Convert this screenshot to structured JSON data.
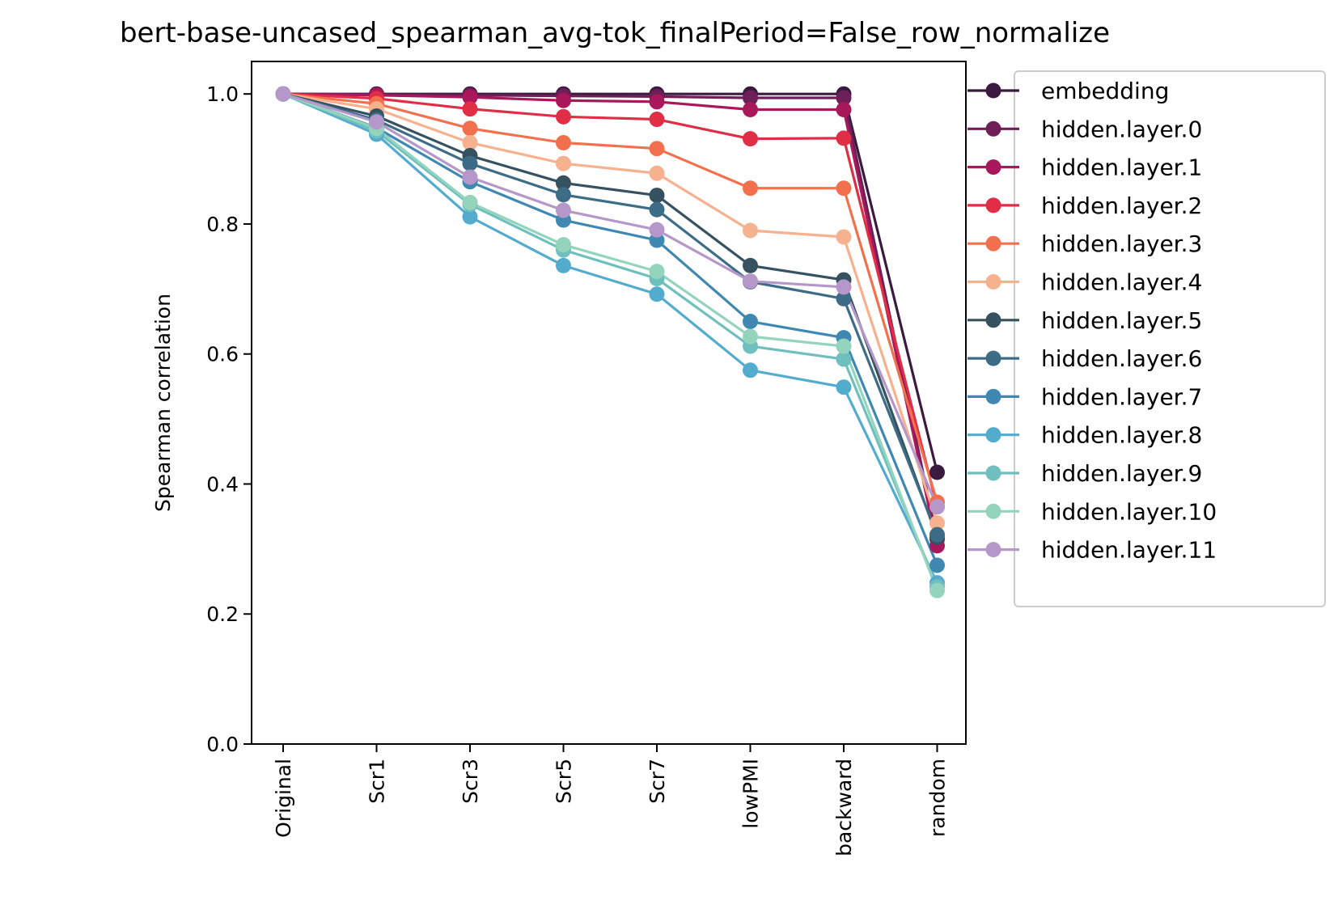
{
  "chart_data": {
    "type": "line",
    "title": "bert-base-uncased_spearman_avg-tok_finalPeriod=False_row_normalize",
    "xlabel": "",
    "ylabel": "Spearman correlation",
    "categories": [
      "Original",
      "Scr1",
      "Scr3",
      "Scr5",
      "Scr7",
      "lowPMI",
      "backward",
      "random"
    ],
    "ylim": [
      0.0,
      1.05
    ],
    "yticks": [
      0.0,
      0.2,
      0.4,
      0.6,
      0.8,
      1.0
    ],
    "ytick_labels": [
      "0.0",
      "0.2",
      "0.4",
      "0.6",
      "0.8",
      "1.0"
    ],
    "grid": false,
    "legend_position": "outside-right",
    "series": [
      {
        "name": "embedding",
        "color": "#3b1a40",
        "values": [
          1.0,
          1.0,
          1.0,
          1.0,
          1.0,
          1.0,
          1.0,
          0.418
        ]
      },
      {
        "name": "hidden.layer.0",
        "color": "#6e1f57",
        "values": [
          1.0,
          0.999,
          0.998,
          0.997,
          0.996,
          0.994,
          0.994,
          0.315
        ]
      },
      {
        "name": "hidden.layer.1",
        "color": "#a8185b",
        "values": [
          1.0,
          0.998,
          0.995,
          0.99,
          0.988,
          0.976,
          0.976,
          0.305
        ]
      },
      {
        "name": "hidden.layer.2",
        "color": "#df2e46",
        "values": [
          1.0,
          0.993,
          0.977,
          0.965,
          0.961,
          0.931,
          0.932,
          0.365
        ]
      },
      {
        "name": "hidden.layer.3",
        "color": "#f3704f",
        "values": [
          1.0,
          0.985,
          0.947,
          0.925,
          0.916,
          0.855,
          0.855,
          0.372
        ]
      },
      {
        "name": "hidden.layer.4",
        "color": "#f6b18f",
        "values": [
          1.0,
          0.977,
          0.925,
          0.893,
          0.878,
          0.79,
          0.78,
          0.34
        ]
      },
      {
        "name": "hidden.layer.5",
        "color": "#36515f",
        "values": [
          1.0,
          0.966,
          0.905,
          0.863,
          0.844,
          0.736,
          0.714,
          0.318
        ]
      },
      {
        "name": "hidden.layer.6",
        "color": "#3d6c87",
        "values": [
          1.0,
          0.96,
          0.893,
          0.845,
          0.822,
          0.711,
          0.685,
          0.322
        ]
      },
      {
        "name": "hidden.layer.7",
        "color": "#3e88b2",
        "values": [
          1.0,
          0.948,
          0.865,
          0.806,
          0.775,
          0.65,
          0.625,
          0.275
        ]
      },
      {
        "name": "hidden.layer.8",
        "color": "#53acce",
        "values": [
          1.0,
          0.938,
          0.811,
          0.736,
          0.692,
          0.575,
          0.549,
          0.248
        ]
      },
      {
        "name": "hidden.layer.9",
        "color": "#6fbfbf",
        "values": [
          1.0,
          0.943,
          0.83,
          0.76,
          0.716,
          0.612,
          0.592,
          0.242
        ]
      },
      {
        "name": "hidden.layer.10",
        "color": "#94d4bd",
        "values": [
          1.0,
          0.947,
          0.833,
          0.768,
          0.727,
          0.627,
          0.612,
          0.236
        ]
      },
      {
        "name": "hidden.layer.11",
        "color": "#b597c9",
        "values": [
          1.0,
          0.957,
          0.872,
          0.821,
          0.791,
          0.712,
          0.703,
          0.365
        ]
      }
    ]
  }
}
